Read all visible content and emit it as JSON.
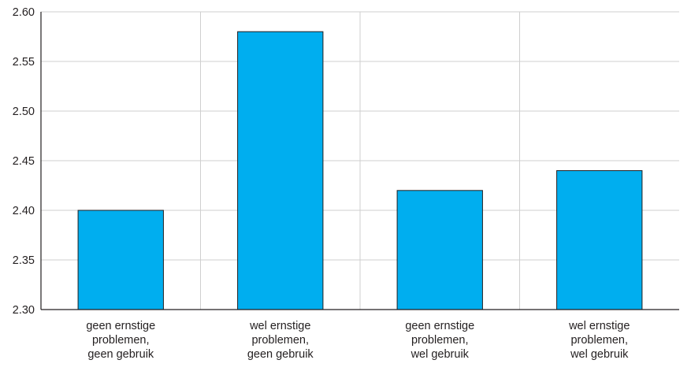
{
  "chart_data": {
    "type": "bar",
    "categories": [
      [
        "geen ernstige",
        "problemen,",
        "geen gebruik"
      ],
      [
        "wel ernstige",
        "problemen,",
        "geen gebruik"
      ],
      [
        "geen ernstige",
        "problemen,",
        "wel gebruik"
      ],
      [
        "wel ernstige",
        "problemen,",
        "wel gebruik"
      ]
    ],
    "values": [
      2.4,
      2.58,
      2.42,
      2.44
    ],
    "ylim": [
      2.3,
      2.6
    ],
    "yticks": [
      "2.30",
      "2.35",
      "2.40",
      "2.45",
      "2.50",
      "2.55",
      "2.60"
    ],
    "title": "",
    "xlabel": "",
    "ylabel": "",
    "grid": true,
    "bar_color": "#00aeef",
    "bar_outline_color": "#231f20",
    "grid_color": "#cfcfcf"
  }
}
